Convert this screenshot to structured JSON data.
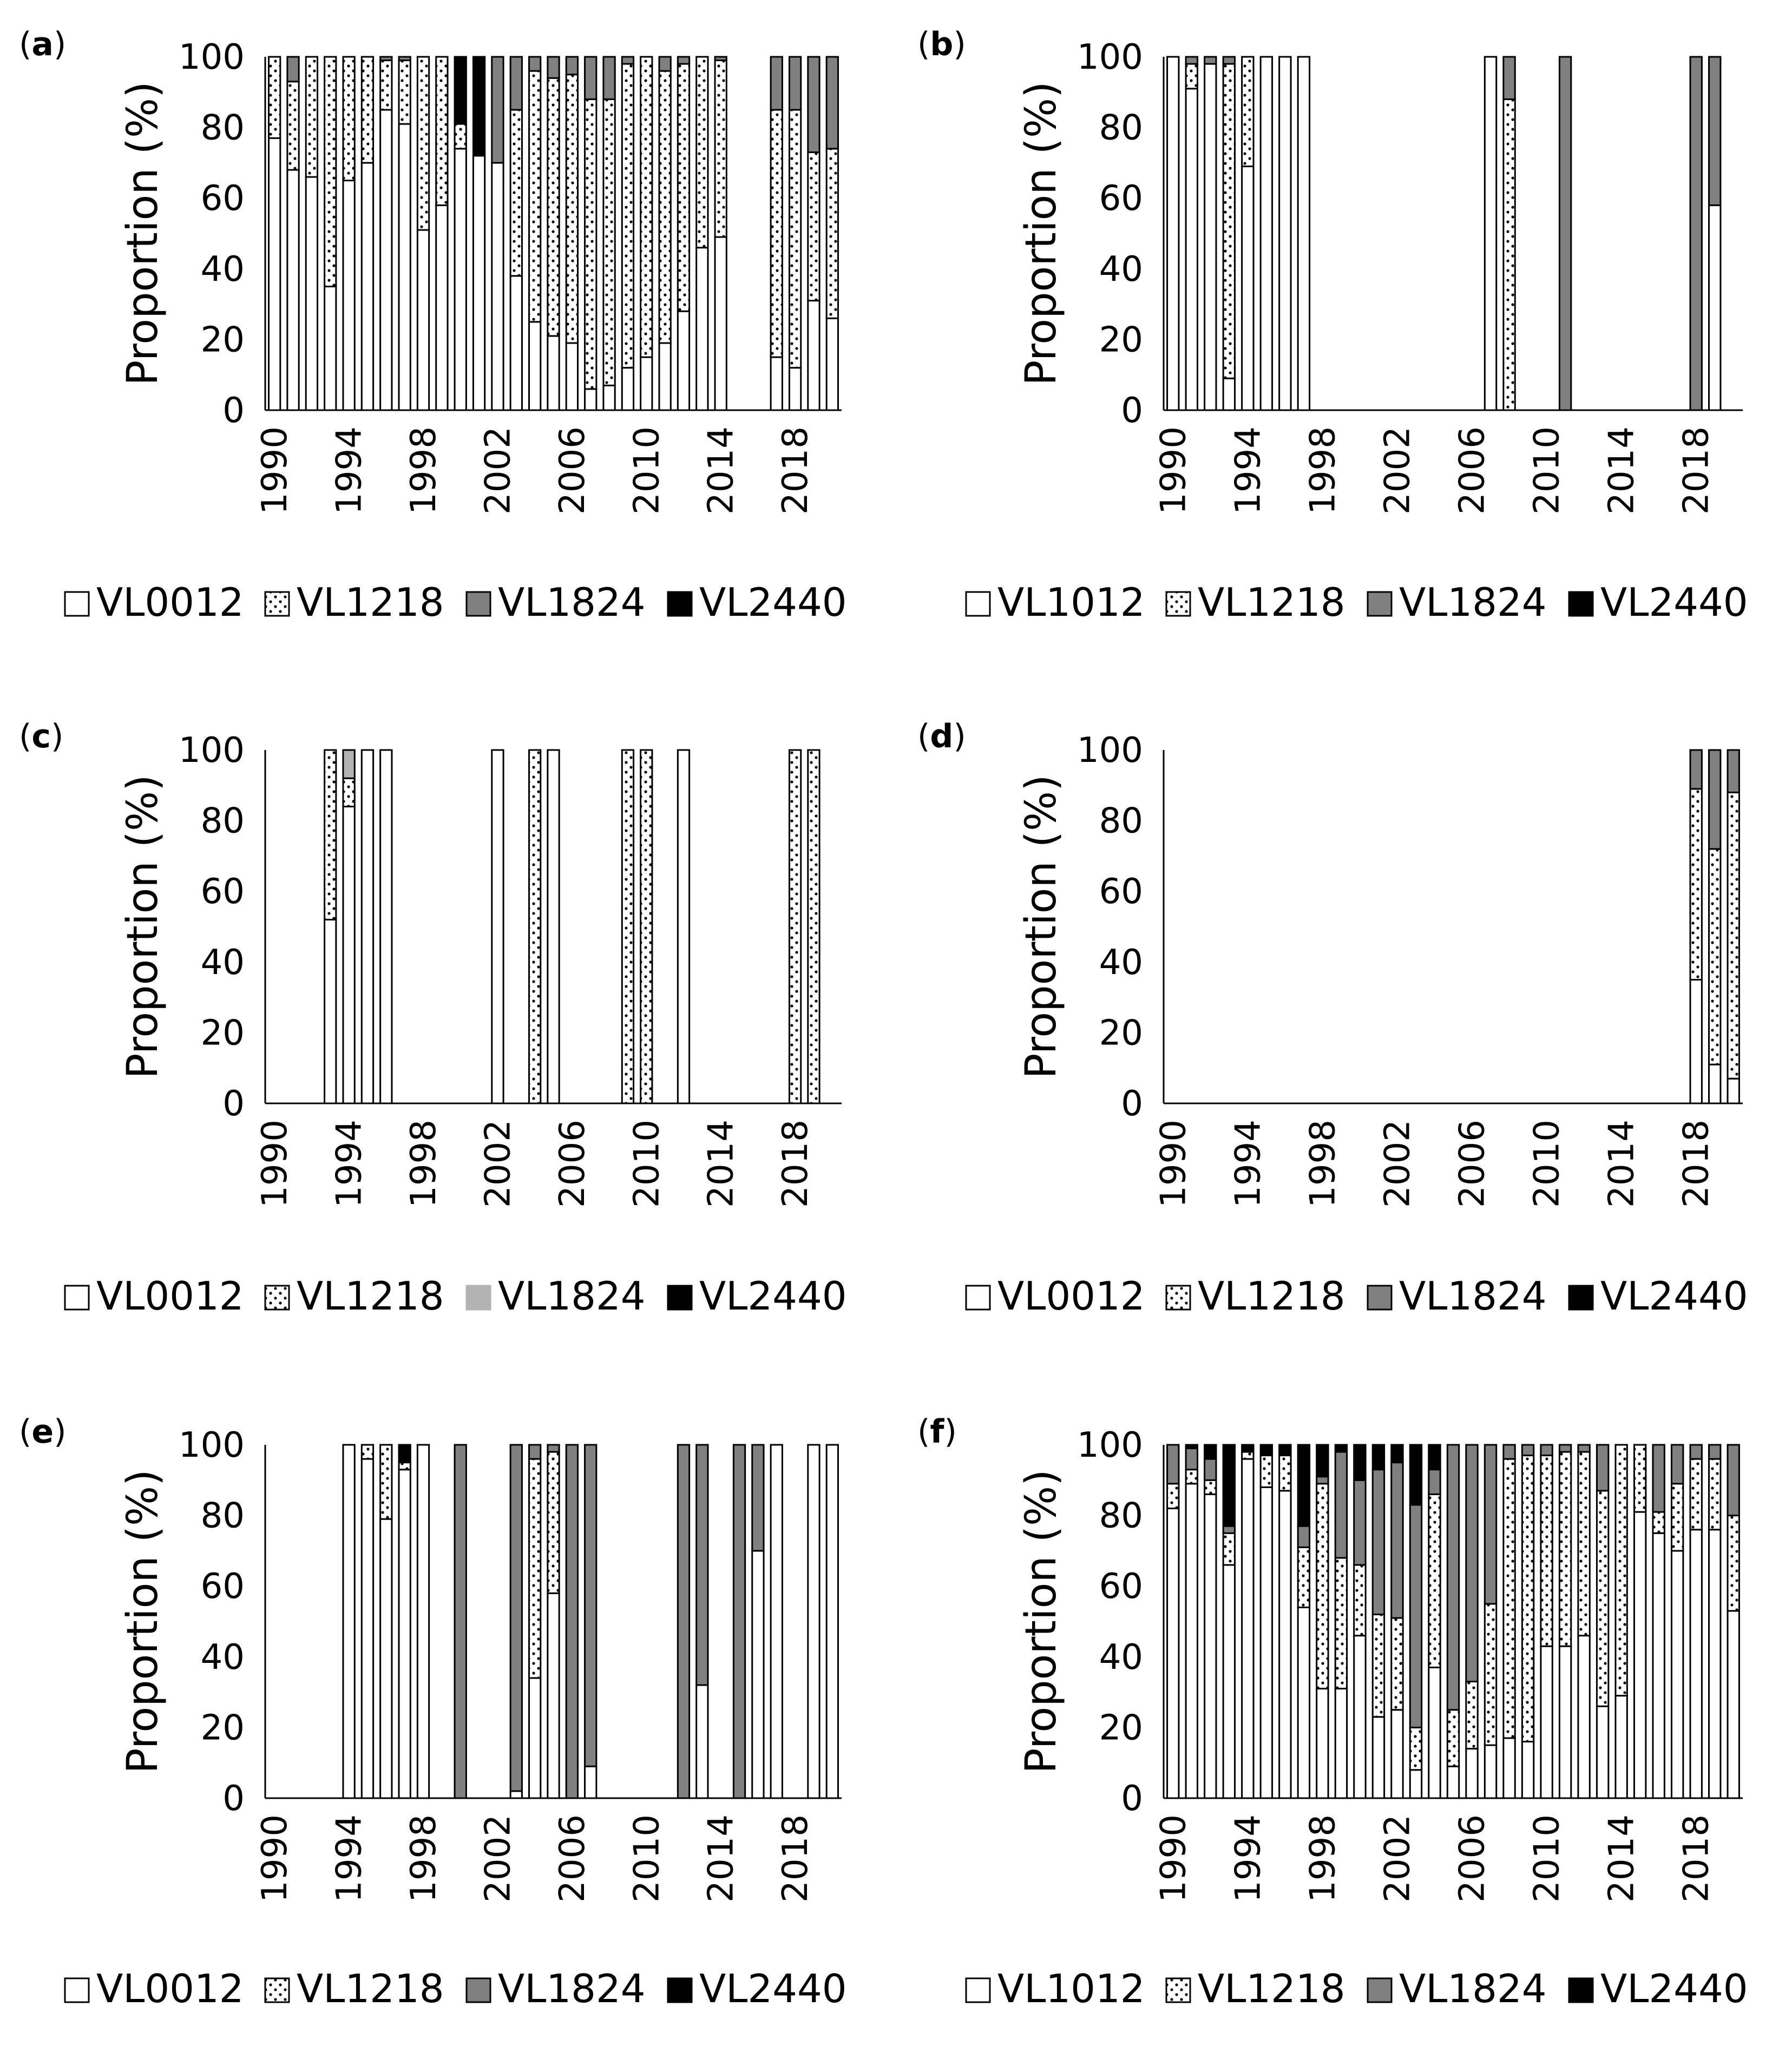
{
  "colors": {
    "VL0012": "#ffffff",
    "VL1012": "#ffffff",
    "VL1218": "dots",
    "VL1824": "#808080",
    "VL1824_light": "#b3b3b3",
    "VL2440": "#000000"
  },
  "chart_data": [
    {
      "type": "bar",
      "stacked": true,
      "panel_label": "a",
      "ylabel": "Proportion (%)",
      "ylim": [
        0,
        100
      ],
      "yticks": [
        0,
        20,
        40,
        60,
        80,
        100
      ],
      "xticks": [
        "1990",
        "1994",
        "1998",
        "2002",
        "2006",
        "2010",
        "2014",
        "2018"
      ],
      "years": [
        1990,
        1991,
        1992,
        1993,
        1994,
        1995,
        1996,
        1997,
        1998,
        1999,
        2000,
        2001,
        2002,
        2003,
        2004,
        2005,
        2006,
        2007,
        2008,
        2009,
        2010,
        2011,
        2012,
        2013,
        2014,
        2015,
        2016,
        2017,
        2018,
        2019,
        2020
      ],
      "legend": [
        "VL0012",
        "VL1218",
        "VL1824",
        "VL2440"
      ],
      "legend_colors": [
        "#ffffff",
        "dots",
        "#808080",
        "#000000"
      ],
      "series": [
        {
          "name": "VL0012",
          "values": [
            77,
            68,
            66,
            35,
            65,
            70,
            85,
            81,
            51,
            58,
            74,
            72,
            70,
            38,
            25,
            21,
            19,
            6,
            7,
            12,
            15,
            19,
            28,
            46,
            49,
            null,
            null,
            15,
            12,
            31,
            26
          ]
        },
        {
          "name": "VL1218",
          "values": [
            23,
            25,
            34,
            65,
            35,
            30,
            14,
            18,
            49,
            42,
            7,
            0,
            0,
            47,
            71,
            73,
            76,
            82,
            81,
            86,
            85,
            77,
            70,
            54,
            50,
            null,
            null,
            70,
            73,
            42,
            48
          ]
        },
        {
          "name": "VL1824",
          "values": [
            0,
            7,
            0,
            0,
            0,
            0,
            1,
            1,
            0,
            0,
            0,
            0,
            30,
            15,
            4,
            6,
            5,
            12,
            12,
            2,
            0,
            4,
            2,
            0,
            1,
            null,
            null,
            15,
            15,
            27,
            26
          ]
        },
        {
          "name": "VL2440",
          "values": [
            0,
            0,
            0,
            0,
            0,
            0,
            0,
            0,
            0,
            0,
            19,
            28,
            0,
            0,
            0,
            0,
            0,
            0,
            0,
            0,
            0,
            0,
            0,
            0,
            0,
            null,
            null,
            0,
            0,
            0,
            0
          ]
        }
      ]
    },
    {
      "type": "bar",
      "stacked": true,
      "panel_label": "b",
      "ylabel": "Proportion (%)",
      "ylim": [
        0,
        100
      ],
      "yticks": [
        0,
        20,
        40,
        60,
        80,
        100
      ],
      "xticks": [
        "1990",
        "1994",
        "1998",
        "2002",
        "2006",
        "2010",
        "2014",
        "2018"
      ],
      "years": [
        1990,
        1991,
        1992,
        1993,
        1994,
        1995,
        1996,
        1997,
        2007,
        2008,
        2011,
        2018,
        2019
      ],
      "legend": [
        "VL1012",
        "VL1218",
        "VL1824",
        "VL2440"
      ],
      "legend_colors": [
        "#ffffff",
        "dots",
        "#808080",
        "#000000"
      ],
      "series": [
        {
          "name": "VL1012",
          "values": [
            100,
            91,
            98,
            9,
            69,
            100,
            100,
            100,
            100,
            0,
            0,
            0,
            58
          ]
        },
        {
          "name": "VL1218",
          "values": [
            0,
            7,
            0,
            89,
            31,
            0,
            0,
            0,
            0,
            88,
            0,
            0,
            0
          ]
        },
        {
          "name": "VL1824",
          "values": [
            0,
            2,
            2,
            2,
            0,
            0,
            0,
            0,
            0,
            12,
            100,
            100,
            42
          ]
        },
        {
          "name": "VL2440",
          "values": [
            0,
            0,
            0,
            0,
            0,
            0,
            0,
            0,
            0,
            0,
            0,
            0,
            0
          ]
        }
      ]
    },
    {
      "type": "bar",
      "stacked": true,
      "panel_label": "c",
      "ylabel": "Proportion (%)",
      "ylim": [
        0,
        100
      ],
      "yticks": [
        0,
        20,
        40,
        60,
        80,
        100
      ],
      "xticks": [
        "1990",
        "1994",
        "1998",
        "2002",
        "2006",
        "2010",
        "2014",
        "2018"
      ],
      "years": [
        1993,
        1994,
        1995,
        1996,
        2002,
        2004,
        2005,
        2009,
        2010,
        2012,
        2018,
        2019
      ],
      "legend": [
        "VL0012",
        "VL1218",
        "VL1824",
        "VL2440"
      ],
      "legend_colors": [
        "#ffffff",
        "dots",
        "#b3b3b3",
        "#000000"
      ],
      "series": [
        {
          "name": "VL0012",
          "values": [
            52,
            84,
            100,
            100,
            100,
            0,
            100,
            0,
            0,
            100,
            0,
            0
          ]
        },
        {
          "name": "VL1218",
          "values": [
            48,
            8,
            0,
            0,
            0,
            100,
            0,
            100,
            100,
            0,
            100,
            100
          ]
        },
        {
          "name": "VL1824",
          "values": [
            0,
            8,
            0,
            0,
            0,
            0,
            0,
            0,
            0,
            0,
            0,
            0
          ]
        },
        {
          "name": "VL2440",
          "values": [
            0,
            0,
            0,
            0,
            0,
            0,
            0,
            0,
            0,
            0,
            0,
            0
          ]
        }
      ]
    },
    {
      "type": "bar",
      "stacked": true,
      "panel_label": "d",
      "ylabel": "Proportion (%)",
      "ylim": [
        0,
        100
      ],
      "yticks": [
        0,
        20,
        40,
        60,
        80,
        100
      ],
      "xticks": [
        "1990",
        "1994",
        "1998",
        "2002",
        "2006",
        "2010",
        "2014",
        "2018"
      ],
      "years": [
        2018,
        2019,
        2020
      ],
      "legend": [
        "VL0012",
        "VL1218",
        "VL1824",
        "VL2440"
      ],
      "legend_colors": [
        "#ffffff",
        "dots",
        "#808080",
        "#000000"
      ],
      "series": [
        {
          "name": "VL0012",
          "values": [
            35,
            11,
            7
          ]
        },
        {
          "name": "VL1218",
          "values": [
            54,
            61,
            81
          ]
        },
        {
          "name": "VL1824",
          "values": [
            11,
            28,
            12
          ]
        },
        {
          "name": "VL2440",
          "values": [
            0,
            0,
            0
          ]
        }
      ]
    },
    {
      "type": "bar",
      "stacked": true,
      "panel_label": "e",
      "ylabel": "Proportion (%)",
      "ylim": [
        0,
        100
      ],
      "yticks": [
        0,
        20,
        40,
        60,
        80,
        100
      ],
      "xticks": [
        "1990",
        "1994",
        "1998",
        "2002",
        "2006",
        "2010",
        "2014",
        "2018"
      ],
      "years": [
        1994,
        1995,
        1996,
        1997,
        1998,
        2000,
        2003,
        2004,
        2005,
        2006,
        2007,
        2012,
        2013,
        2015,
        2016,
        2017,
        2019,
        2020
      ],
      "legend": [
        "VL0012",
        "VL1218",
        "VL1824",
        "VL2440"
      ],
      "legend_colors": [
        "#ffffff",
        "dots",
        "#808080",
        "#000000"
      ],
      "series": [
        {
          "name": "VL0012",
          "values": [
            100,
            96,
            79,
            93,
            100,
            0,
            2,
            34,
            58,
            0,
            9,
            0,
            32,
            0,
            70,
            100,
            100,
            100
          ]
        },
        {
          "name": "VL1218",
          "values": [
            0,
            4,
            21,
            2,
            0,
            0,
            0,
            62,
            40,
            0,
            0,
            0,
            0,
            0,
            0,
            0,
            0,
            0
          ]
        },
        {
          "name": "VL1824",
          "values": [
            0,
            0,
            0,
            0,
            0,
            100,
            98,
            4,
            2,
            100,
            91,
            100,
            68,
            100,
            30,
            0,
            0,
            0
          ]
        },
        {
          "name": "VL2440",
          "values": [
            0,
            0,
            0,
            5,
            0,
            0,
            0,
            0,
            0,
            0,
            0,
            0,
            0,
            0,
            0,
            0,
            0,
            0
          ]
        }
      ]
    },
    {
      "type": "bar",
      "stacked": true,
      "panel_label": "f",
      "ylabel": "Proportion (%)",
      "ylim": [
        0,
        100
      ],
      "yticks": [
        0,
        20,
        40,
        60,
        80,
        100
      ],
      "xticks": [
        "1990",
        "1994",
        "1998",
        "2002",
        "2006",
        "2010",
        "2014",
        "2018"
      ],
      "years": [
        1990,
        1991,
        1992,
        1993,
        1994,
        1995,
        1996,
        1997,
        1998,
        1999,
        2000,
        2001,
        2002,
        2003,
        2004,
        2005,
        2006,
        2007,
        2008,
        2009,
        2010,
        2011,
        2012,
        2013,
        2014,
        2015,
        2016,
        2017,
        2018,
        2019,
        2020
      ],
      "legend": [
        "VL1012",
        "VL1218",
        "VL1824",
        "VL2440"
      ],
      "legend_colors": [
        "#ffffff",
        "dots",
        "#808080",
        "#000000"
      ],
      "series": [
        {
          "name": "VL1012",
          "values": [
            82,
            89,
            86,
            66,
            96,
            88,
            87,
            54,
            31,
            31,
            46,
            23,
            25,
            8,
            37,
            9,
            14,
            15,
            17,
            16,
            43,
            43,
            46,
            26,
            29,
            81,
            75,
            70,
            76,
            76,
            53
          ]
        },
        {
          "name": "VL1218",
          "values": [
            7,
            4,
            4,
            9,
            2,
            9,
            10,
            17,
            58,
            37,
            20,
            29,
            26,
            12,
            49,
            16,
            19,
            40,
            79,
            81,
            54,
            55,
            52,
            61,
            71,
            19,
            6,
            19,
            20,
            20,
            27
          ]
        },
        {
          "name": "VL1824",
          "values": [
            11,
            6,
            6,
            2,
            0,
            0,
            0,
            6,
            2,
            30,
            24,
            41,
            44,
            63,
            7,
            75,
            67,
            45,
            4,
            3,
            3,
            2,
            2,
            13,
            0,
            0,
            19,
            11,
            4,
            4,
            20
          ]
        },
        {
          "name": "VL2440",
          "values": [
            0,
            1,
            4,
            23,
            2,
            3,
            3,
            23,
            9,
            2,
            10,
            7,
            5,
            17,
            7,
            0,
            0,
            0,
            0,
            0,
            0,
            0,
            0,
            0,
            0,
            0,
            0,
            0,
            0,
            0,
            0
          ]
        }
      ]
    }
  ]
}
